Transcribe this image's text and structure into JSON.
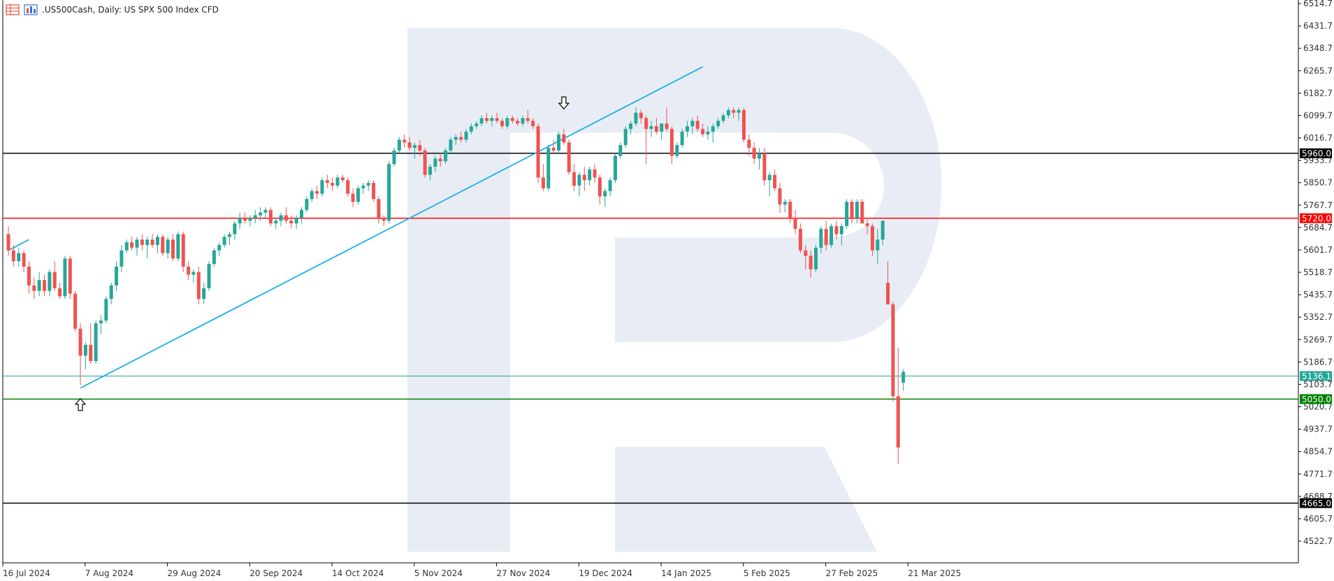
{
  "header": {
    "symbol_title": ".US500Cash, Daily:  US SPX 500 Index CFD",
    "icons": [
      "table-icon",
      "bars-icon"
    ]
  },
  "colors": {
    "bull": "#26a69a",
    "bear": "#ef5350",
    "trendline": "#1eaee8",
    "resistance": "#ff0000",
    "support": "#008000",
    "black_level": "#000000",
    "current": "#26a69a",
    "watermark": "#e8edf5"
  },
  "chart_data": {
    "type": "candlestick",
    "title": ".US500Cash, Daily:  US SPX 500 Index CFD",
    "ylim": [
      4440,
      6530
    ],
    "y_ticks": [
      "6514.7",
      "6431.7",
      "6348.7",
      "6265.7",
      "6182.7",
      "6099.7",
      "6016.7",
      "5933.7",
      "5850.7",
      "5767.7",
      "5684.7",
      "5601.7",
      "5518.7",
      "5435.7",
      "5352.7",
      "5269.7",
      "5186.7",
      "5103.7",
      "5020.7",
      "4937.7",
      "4854.7",
      "4771.7",
      "4688.7",
      "4605.7",
      "4522.7"
    ],
    "x_labels": [
      {
        "label": "16 Jul 2024",
        "index": 0
      },
      {
        "label": "7 Aug 2024",
        "index": 16
      },
      {
        "label": "29 Aug 2024",
        "index": 32
      },
      {
        "label": "20 Sep 2024",
        "index": 48
      },
      {
        "label": "14 Oct 2024",
        "index": 64
      },
      {
        "label": "5 Nov 2024",
        "index": 80
      },
      {
        "label": "27 Nov 2024",
        "index": 96
      },
      {
        "label": "19 Dec 2024",
        "index": 112
      },
      {
        "label": "14 Jan 2025",
        "index": 128
      },
      {
        "label": "5 Feb 2025",
        "index": 144
      },
      {
        "label": "27 Feb 2025",
        "index": 160
      },
      {
        "label": "21 Mar 2025",
        "index": 176
      }
    ],
    "levels": [
      {
        "name": "level-5960",
        "label": "5960.0",
        "value": 5960.0,
        "color": "#000000",
        "label_bg": "#000000"
      },
      {
        "name": "level-5720",
        "label": "5720.0",
        "value": 5720.0,
        "color": "#ff0000",
        "label_bg": "#ff0000"
      },
      {
        "name": "level-5136",
        "label": "5136.1",
        "value": 5136.1,
        "color": "#26a69a",
        "label_bg": "#26a69a"
      },
      {
        "name": "level-5050",
        "label": "5050.0",
        "value": 5050.0,
        "color": "#008000",
        "label_bg": "#008000"
      },
      {
        "name": "level-4665",
        "label": "4665.0",
        "value": 4665.0,
        "color": "#000000",
        "label_bg": "#000000"
      }
    ],
    "trendlines": [
      {
        "name": "uptrend-main",
        "from": {
          "index": 14,
          "value": 5090
        },
        "to": {
          "index": 135,
          "value": 6280
        }
      },
      {
        "name": "uptrend-left-stub",
        "from": {
          "index": 0,
          "value": 5600
        },
        "to": {
          "index": 4,
          "value": 5640
        }
      }
    ],
    "arrows": [
      {
        "name": "up-arrow",
        "direction": "up",
        "index": 14,
        "value": 5030
      },
      {
        "name": "down-arrow",
        "direction": "down",
        "index": 108,
        "value": 6145
      }
    ],
    "candles": [
      [
        5660,
        5690,
        5580,
        5600
      ],
      [
        5600,
        5620,
        5540,
        5560
      ],
      [
        5560,
        5610,
        5540,
        5590
      ],
      [
        5590,
        5600,
        5520,
        5540
      ],
      [
        5540,
        5560,
        5440,
        5470
      ],
      [
        5470,
        5500,
        5420,
        5450
      ],
      [
        5450,
        5520,
        5430,
        5490
      ],
      [
        5490,
        5510,
        5430,
        5450
      ],
      [
        5450,
        5530,
        5430,
        5520
      ],
      [
        5520,
        5560,
        5450,
        5460
      ],
      [
        5460,
        5480,
        5420,
        5430
      ],
      [
        5430,
        5580,
        5420,
        5570
      ],
      [
        5570,
        5580,
        5420,
        5440
      ],
      [
        5440,
        5450,
        5300,
        5310
      ],
      [
        5310,
        5330,
        5100,
        5210
      ],
      [
        5210,
        5260,
        5160,
        5250
      ],
      [
        5250,
        5330,
        5180,
        5190
      ],
      [
        5190,
        5340,
        5180,
        5330
      ],
      [
        5330,
        5360,
        5290,
        5340
      ],
      [
        5340,
        5430,
        5330,
        5420
      ],
      [
        5420,
        5480,
        5400,
        5470
      ],
      [
        5470,
        5560,
        5450,
        5540
      ],
      [
        5540,
        5620,
        5520,
        5600
      ],
      [
        5600,
        5640,
        5590,
        5630
      ],
      [
        5630,
        5650,
        5600,
        5610
      ],
      [
        5610,
        5650,
        5580,
        5640
      ],
      [
        5640,
        5660,
        5600,
        5620
      ],
      [
        5620,
        5650,
        5570,
        5640
      ],
      [
        5640,
        5660,
        5610,
        5620
      ],
      [
        5620,
        5660,
        5590,
        5650
      ],
      [
        5650,
        5660,
        5580,
        5590
      ],
      [
        5590,
        5650,
        5570,
        5640
      ],
      [
        5640,
        5660,
        5560,
        5570
      ],
      [
        5570,
        5670,
        5560,
        5660
      ],
      [
        5660,
        5670,
        5520,
        5540
      ],
      [
        5540,
        5560,
        5490,
        5510
      ],
      [
        5510,
        5530,
        5480,
        5520
      ],
      [
        5520,
        5540,
        5400,
        5420
      ],
      [
        5420,
        5480,
        5400,
        5460
      ],
      [
        5460,
        5560,
        5450,
        5550
      ],
      [
        5550,
        5610,
        5540,
        5600
      ],
      [
        5600,
        5630,
        5580,
        5620
      ],
      [
        5620,
        5660,
        5610,
        5650
      ],
      [
        5650,
        5670,
        5620,
        5660
      ],
      [
        5660,
        5710,
        5640,
        5700
      ],
      [
        5700,
        5740,
        5680,
        5720
      ],
      [
        5720,
        5740,
        5700,
        5710
      ],
      [
        5710,
        5730,
        5690,
        5720
      ],
      [
        5720,
        5750,
        5700,
        5730
      ],
      [
        5730,
        5760,
        5710,
        5740
      ],
      [
        5740,
        5760,
        5720,
        5750
      ],
      [
        5750,
        5760,
        5690,
        5700
      ],
      [
        5700,
        5720,
        5680,
        5710
      ],
      [
        5710,
        5740,
        5690,
        5730
      ],
      [
        5730,
        5760,
        5700,
        5710
      ],
      [
        5710,
        5730,
        5680,
        5700
      ],
      [
        5700,
        5730,
        5680,
        5720
      ],
      [
        5720,
        5760,
        5700,
        5750
      ],
      [
        5750,
        5800,
        5740,
        5790
      ],
      [
        5790,
        5830,
        5780,
        5820
      ],
      [
        5820,
        5840,
        5790,
        5810
      ],
      [
        5810,
        5870,
        5800,
        5860
      ],
      [
        5860,
        5880,
        5830,
        5850
      ],
      [
        5850,
        5870,
        5820,
        5840
      ],
      [
        5840,
        5880,
        5830,
        5870
      ],
      [
        5870,
        5880,
        5850,
        5860
      ],
      [
        5860,
        5870,
        5800,
        5810
      ],
      [
        5810,
        5830,
        5760,
        5780
      ],
      [
        5780,
        5840,
        5770,
        5830
      ],
      [
        5830,
        5850,
        5810,
        5840
      ],
      [
        5840,
        5860,
        5820,
        5850
      ],
      [
        5850,
        5860,
        5780,
        5790
      ],
      [
        5790,
        5800,
        5700,
        5720
      ],
      [
        5720,
        5730,
        5690,
        5710
      ],
      [
        5710,
        5930,
        5700,
        5920
      ],
      [
        5920,
        5980,
        5910,
        5970
      ],
      [
        5970,
        6020,
        5960,
        6010
      ],
      [
        6010,
        6030,
        5980,
        6000
      ],
      [
        6000,
        6020,
        5970,
        5980
      ],
      [
        5980,
        6000,
        5940,
        5990
      ],
      [
        5990,
        6010,
        5950,
        5970
      ],
      [
        5970,
        5980,
        5870,
        5880
      ],
      [
        5880,
        5920,
        5860,
        5910
      ],
      [
        5910,
        5950,
        5890,
        5940
      ],
      [
        5940,
        5960,
        5910,
        5930
      ],
      [
        5930,
        5980,
        5920,
        5970
      ],
      [
        5970,
        6020,
        5960,
        6010
      ],
      [
        6010,
        6030,
        5990,
        6020
      ],
      [
        6020,
        6040,
        6000,
        6010
      ],
      [
        6010,
        6050,
        6000,
        6040
      ],
      [
        6040,
        6070,
        6030,
        6060
      ],
      [
        6060,
        6080,
        6050,
        6070
      ],
      [
        6070,
        6100,
        6060,
        6090
      ],
      [
        6090,
        6110,
        6070,
        6080
      ],
      [
        6080,
        6100,
        6060,
        6090
      ],
      [
        6090,
        6110,
        6070,
        6080
      ],
      [
        6080,
        6090,
        6050,
        6060
      ],
      [
        6060,
        6100,
        6050,
        6090
      ],
      [
        6090,
        6100,
        6070,
        6080
      ],
      [
        6080,
        6090,
        6060,
        6070
      ],
      [
        6070,
        6100,
        6060,
        6090
      ],
      [
        6090,
        6120,
        6070,
        6080
      ],
      [
        6080,
        6090,
        6050,
        6060
      ],
      [
        6060,
        6070,
        5850,
        5870
      ],
      [
        5870,
        5920,
        5820,
        5830
      ],
      [
        5830,
        5990,
        5820,
        5980
      ],
      [
        5980,
        6010,
        5960,
        5970
      ],
      [
        5970,
        6040,
        5960,
        6030
      ],
      [
        6030,
        6050,
        5990,
        6000
      ],
      [
        6000,
        6010,
        5880,
        5890
      ],
      [
        5890,
        5920,
        5820,
        5840
      ],
      [
        5840,
        5890,
        5800,
        5880
      ],
      [
        5880,
        5910,
        5820,
        5860
      ],
      [
        5860,
        5910,
        5840,
        5900
      ],
      [
        5900,
        5920,
        5850,
        5870
      ],
      [
        5870,
        5880,
        5770,
        5800
      ],
      [
        5800,
        5830,
        5760,
        5820
      ],
      [
        5820,
        5870,
        5800,
        5860
      ],
      [
        5860,
        5960,
        5850,
        5950
      ],
      [
        5950,
        6000,
        5940,
        5990
      ],
      [
        5990,
        6060,
        5980,
        6050
      ],
      [
        6050,
        6080,
        6030,
        6070
      ],
      [
        6070,
        6130,
        6060,
        6110
      ],
      [
        6110,
        6120,
        6070,
        6090
      ],
      [
        6090,
        6100,
        5920,
        6050
      ],
      [
        6050,
        6080,
        6020,
        6060
      ],
      [
        6060,
        6090,
        6030,
        6040
      ],
      [
        6040,
        6070,
        6010,
        6070
      ],
      [
        6070,
        6130,
        6040,
        6050
      ],
      [
        6050,
        6060,
        5920,
        5950
      ],
      [
        5950,
        6000,
        5940,
        5990
      ],
      [
        5990,
        6050,
        5980,
        6040
      ],
      [
        6040,
        6080,
        6020,
        6060
      ],
      [
        6060,
        6090,
        6030,
        6080
      ],
      [
        6080,
        6100,
        6040,
        6050
      ],
      [
        6050,
        6070,
        6020,
        6030
      ],
      [
        6030,
        6060,
        6010,
        6040
      ],
      [
        6040,
        6070,
        6000,
        6060
      ],
      [
        6060,
        6090,
        6050,
        6080
      ],
      [
        6080,
        6110,
        6070,
        6100
      ],
      [
        6100,
        6130,
        6090,
        6120
      ],
      [
        6120,
        6130,
        6090,
        6110
      ],
      [
        6110,
        6130,
        6080,
        6120
      ],
      [
        6120,
        6130,
        6000,
        6010
      ],
      [
        6010,
        6030,
        5950,
        5980
      ],
      [
        5980,
        6000,
        5920,
        5940
      ],
      [
        5940,
        5980,
        5900,
        5960
      ],
      [
        5960,
        5980,
        5840,
        5860
      ],
      [
        5860,
        5890,
        5800,
        5880
      ],
      [
        5880,
        5900,
        5820,
        5830
      ],
      [
        5830,
        5850,
        5740,
        5770
      ],
      [
        5770,
        5790,
        5740,
        5780
      ],
      [
        5780,
        5790,
        5700,
        5720
      ],
      [
        5720,
        5750,
        5660,
        5680
      ],
      [
        5680,
        5700,
        5590,
        5600
      ],
      [
        5600,
        5620,
        5530,
        5580
      ],
      [
        5580,
        5600,
        5500,
        5530
      ],
      [
        5530,
        5620,
        5520,
        5610
      ],
      [
        5610,
        5690,
        5590,
        5680
      ],
      [
        5680,
        5710,
        5600,
        5620
      ],
      [
        5620,
        5700,
        5610,
        5690
      ],
      [
        5690,
        5710,
        5640,
        5660
      ],
      [
        5660,
        5700,
        5620,
        5690
      ],
      [
        5690,
        5790,
        5680,
        5780
      ],
      [
        5780,
        5790,
        5700,
        5720
      ],
      [
        5720,
        5790,
        5700,
        5780
      ],
      [
        5780,
        5790,
        5700,
        5700
      ],
      [
        5700,
        5720,
        5660,
        5690
      ],
      [
        5690,
        5700,
        5580,
        5600
      ],
      [
        5600,
        5680,
        5550,
        5640
      ],
      [
        5640,
        5700,
        5620,
        5710
      ],
      [
        5480,
        5560,
        5400,
        5400
      ],
      [
        5400,
        5410,
        5040,
        5060
      ],
      [
        5060,
        5240,
        4810,
        4870
      ],
      [
        5110,
        5160,
        5080,
        5150
      ]
    ]
  }
}
